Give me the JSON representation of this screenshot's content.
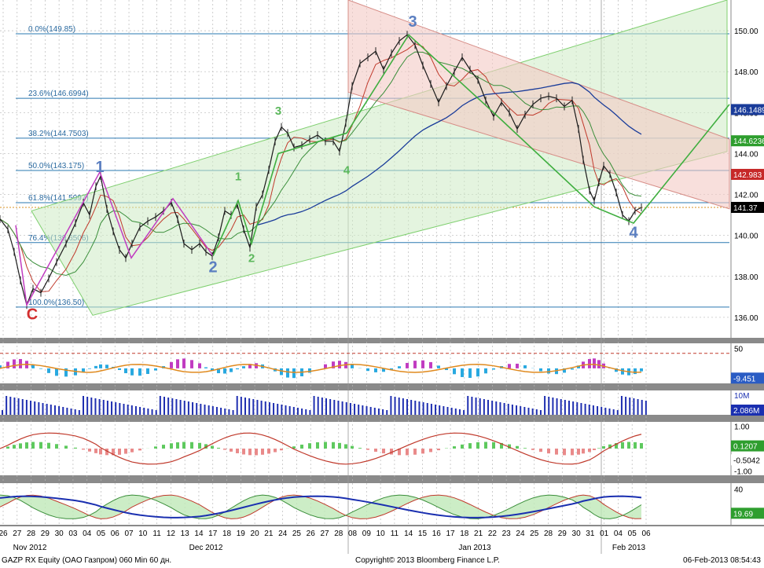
{
  "chart_data": {
    "type": "line",
    "title": "GAZP RX Equity (OAO Газпром) 060 Min 60 дн.",
    "main_panel": {
      "ylim": [
        135.0,
        151.5
      ],
      "y_ticks": [
        "136.00",
        "138.00",
        "140.00",
        "142.00",
        "144.00",
        "146.00",
        "148.00",
        "150.00"
      ],
      "fib_levels": [
        {
          "label": "0.0%(149.85)",
          "value": 149.85
        },
        {
          "label": "23.6%(146.6994)",
          "value": 146.6994
        },
        {
          "label": "38.2%(144.7503)",
          "value": 144.7503
        },
        {
          "label": "50.0%(143.175)",
          "value": 143.175
        },
        {
          "label": "61.8%(141.5997)",
          "value": 141.5997
        },
        {
          "label": "76.4%(139.6506)",
          "value": 139.6506
        },
        {
          "label": "100.0%(136.50)",
          "value": 136.5
        }
      ],
      "right_labels": [
        {
          "text": "146.1489",
          "value": 146.1489,
          "color": "#1a3c9a"
        },
        {
          "text": "144.6236",
          "value": 144.6236,
          "color": "#2e9e2e"
        },
        {
          "text": "142.983",
          "value": 142.983,
          "color": "#c62828"
        },
        {
          "text": "141.37",
          "value": 141.37,
          "color": "#000000"
        }
      ],
      "last_price": 141.37,
      "price_series": [
        {
          "x": 0,
          "y": 140.8
        },
        {
          "x": 10,
          "y": 140.3
        },
        {
          "x": 18,
          "y": 139.2
        },
        {
          "x": 26,
          "y": 137.8
        },
        {
          "x": 34,
          "y": 136.6
        },
        {
          "x": 42,
          "y": 137.4
        },
        {
          "x": 52,
          "y": 137.2
        },
        {
          "x": 62,
          "y": 137.9
        },
        {
          "x": 72,
          "y": 138.7
        },
        {
          "x": 84,
          "y": 139.6
        },
        {
          "x": 96,
          "y": 140.6
        },
        {
          "x": 106,
          "y": 141.6
        },
        {
          "x": 114,
          "y": 141.0
        },
        {
          "x": 122,
          "y": 142.4
        },
        {
          "x": 128,
          "y": 142.9
        },
        {
          "x": 136,
          "y": 141.3
        },
        {
          "x": 144,
          "y": 140.2
        },
        {
          "x": 152,
          "y": 139.3
        },
        {
          "x": 160,
          "y": 138.9
        },
        {
          "x": 168,
          "y": 139.6
        },
        {
          "x": 178,
          "y": 140.4
        },
        {
          "x": 188,
          "y": 140.7
        },
        {
          "x": 198,
          "y": 140.9
        },
        {
          "x": 208,
          "y": 141.2
        },
        {
          "x": 218,
          "y": 141.6
        },
        {
          "x": 226,
          "y": 140.8
        },
        {
          "x": 234,
          "y": 139.6
        },
        {
          "x": 244,
          "y": 139.3
        },
        {
          "x": 254,
          "y": 139.6
        },
        {
          "x": 262,
          "y": 139.2
        },
        {
          "x": 270,
          "y": 139.0
        },
        {
          "x": 278,
          "y": 139.9
        },
        {
          "x": 286,
          "y": 141.2
        },
        {
          "x": 294,
          "y": 141.0
        },
        {
          "x": 302,
          "y": 141.5
        },
        {
          "x": 310,
          "y": 140.3
        },
        {
          "x": 318,
          "y": 139.4
        },
        {
          "x": 326,
          "y": 141.4
        },
        {
          "x": 334,
          "y": 142.0
        },
        {
          "x": 342,
          "y": 143.2
        },
        {
          "x": 350,
          "y": 144.6
        },
        {
          "x": 358,
          "y": 145.3
        },
        {
          "x": 366,
          "y": 145.0
        },
        {
          "x": 374,
          "y": 144.3
        },
        {
          "x": 384,
          "y": 144.4
        },
        {
          "x": 394,
          "y": 144.7
        },
        {
          "x": 404,
          "y": 144.9
        },
        {
          "x": 414,
          "y": 144.6
        },
        {
          "x": 424,
          "y": 144.6
        },
        {
          "x": 432,
          "y": 144.1
        },
        {
          "x": 440,
          "y": 145.5
        },
        {
          "x": 448,
          "y": 147.3
        },
        {
          "x": 458,
          "y": 148.4
        },
        {
          "x": 468,
          "y": 148.7
        },
        {
          "x": 478,
          "y": 149.0
        },
        {
          "x": 488,
          "y": 148.1
        },
        {
          "x": 498,
          "y": 148.9
        },
        {
          "x": 508,
          "y": 149.5
        },
        {
          "x": 518,
          "y": 149.8
        },
        {
          "x": 528,
          "y": 149.3
        },
        {
          "x": 538,
          "y": 148.3
        },
        {
          "x": 548,
          "y": 147.4
        },
        {
          "x": 558,
          "y": 146.5
        },
        {
          "x": 568,
          "y": 147.3
        },
        {
          "x": 578,
          "y": 148.0
        },
        {
          "x": 588,
          "y": 148.7
        },
        {
          "x": 598,
          "y": 148.1
        },
        {
          "x": 608,
          "y": 147.6
        },
        {
          "x": 618,
          "y": 146.6
        },
        {
          "x": 628,
          "y": 145.8
        },
        {
          "x": 638,
          "y": 146.5
        },
        {
          "x": 648,
          "y": 146.0
        },
        {
          "x": 658,
          "y": 145.2
        },
        {
          "x": 668,
          "y": 145.9
        },
        {
          "x": 678,
          "y": 146.4
        },
        {
          "x": 688,
          "y": 146.7
        },
        {
          "x": 698,
          "y": 146.8
        },
        {
          "x": 708,
          "y": 146.7
        },
        {
          "x": 718,
          "y": 146.3
        },
        {
          "x": 728,
          "y": 146.6
        },
        {
          "x": 736,
          "y": 145.2
        },
        {
          "x": 742,
          "y": 143.7
        },
        {
          "x": 750,
          "y": 142.2
        },
        {
          "x": 756,
          "y": 141.7
        },
        {
          "x": 762,
          "y": 142.6
        },
        {
          "x": 768,
          "y": 143.4
        },
        {
          "x": 776,
          "y": 143.0
        },
        {
          "x": 784,
          "y": 142.1
        },
        {
          "x": 792,
          "y": 141.0
        },
        {
          "x": 800,
          "y": 140.7
        },
        {
          "x": 808,
          "y": 141.2
        },
        {
          "x": 816,
          "y": 141.37
        }
      ],
      "wave_labels": [
        {
          "text": "1",
          "x": 127,
          "y": 143.1,
          "color": "#5b7fc1"
        },
        {
          "text": "C",
          "x": 41,
          "y": 135.9,
          "color": "#d32f2f"
        },
        {
          "text": "2",
          "x": 271,
          "y": 138.2,
          "color": "#5b7fc1"
        },
        {
          "text": "3",
          "x": 525,
          "y": 150.2,
          "color": "#5b7fc1"
        },
        {
          "text": "4",
          "x": 806,
          "y": 139.9,
          "color": "#5b7fc1"
        },
        {
          "text": "1",
          "x": 303,
          "y": 142.7,
          "color": "#5cb85c"
        },
        {
          "text": "2",
          "x": 320,
          "y": 138.7,
          "color": "#5cb85c"
        },
        {
          "text": "3",
          "x": 354,
          "y": 145.9,
          "color": "#5cb85c"
        },
        {
          "text": "4",
          "x": 441,
          "y": 143.0,
          "color": "#5cb85c"
        }
      ]
    },
    "panel2": {
      "ylim": [
        -20,
        60
      ],
      "y_tick": "50",
      "value_label": "-9.451"
    },
    "panel3": {
      "y_tick": "10M",
      "value_label": "2.086M"
    },
    "panel4": {
      "ylim": [
        -1.2,
        1.2
      ],
      "y_ticks": [
        "1.00",
        "-1.00"
      ],
      "value_labels": [
        "0.1207",
        "-0.5042"
      ]
    },
    "panel5": {
      "ylim": [
        10,
        45
      ],
      "y_tick": "40",
      "value_label": "19.69"
    },
    "x_axis": {
      "day_labels": [
        "26",
        "27",
        "28",
        "29",
        "30",
        "03",
        "04",
        "05",
        "06",
        "07",
        "10",
        "11",
        "12",
        "13",
        "14",
        "17",
        "18",
        "19",
        "20",
        "21",
        "24",
        "25",
        "26",
        "27",
        "28",
        "08",
        "09",
        "10",
        "11",
        "14",
        "15",
        "16",
        "17",
        "18",
        "21",
        "22",
        "23",
        "24",
        "25",
        "28",
        "29",
        "30",
        "31",
        "01",
        "04",
        "05",
        "06"
      ],
      "month_labels": [
        {
          "text": "Nov 2012",
          "x": 38
        },
        {
          "text": "Dec 2012",
          "x": 262
        },
        {
          "text": "Jan 2013",
          "x": 604
        },
        {
          "text": "Feb 2013",
          "x": 800
        }
      ]
    }
  },
  "footer": {
    "left": "GAZP RX Equity (OAO Газпром) 060 Min 60 дн.",
    "center": "Copyright© 2013 Bloomberg Finance L.P.",
    "right": "06-Feb-2013 08:54:43"
  }
}
